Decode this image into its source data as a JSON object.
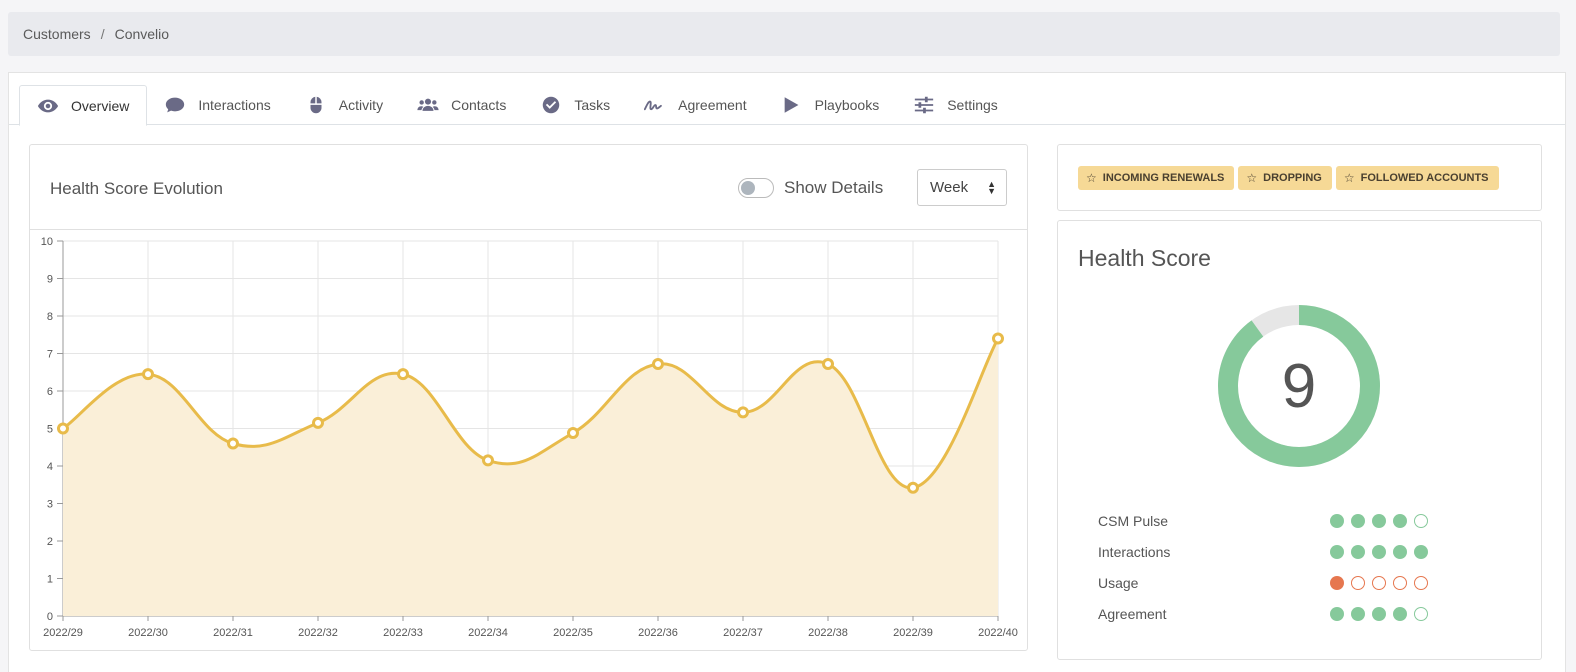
{
  "breadcrumb": {
    "items": [
      "Customers",
      "Convelio"
    ],
    "separator": "/"
  },
  "tabs": [
    {
      "label": "Overview",
      "icon": "eye-icon",
      "active": true
    },
    {
      "label": "Interactions",
      "icon": "chat-bubble-icon"
    },
    {
      "label": "Activity",
      "icon": "mouse-icon"
    },
    {
      "label": "Contacts",
      "icon": "users-icon"
    },
    {
      "label": "Tasks",
      "icon": "check-circle-icon"
    },
    {
      "label": "Agreement",
      "icon": "signature-icon"
    },
    {
      "label": "Playbooks",
      "icon": "play-icon"
    },
    {
      "label": "Settings",
      "icon": "sliders-icon"
    }
  ],
  "health_chart": {
    "title": "Health Score Evolution",
    "toggle_label": "Show Details",
    "toggle_on": false,
    "period_select": "Week"
  },
  "chart_data": {
    "type": "line",
    "categories": [
      "2022/29",
      "2022/30",
      "2022/31",
      "2022/32",
      "2022/33",
      "2022/34",
      "2022/35",
      "2022/36",
      "2022/37",
      "2022/38",
      "2022/39",
      "2022/40"
    ],
    "series": [
      {
        "values": [
          5.0,
          6.45,
          4.6,
          5.15,
          6.45,
          4.15,
          4.88,
          6.72,
          5.43,
          6.72,
          3.42,
          7.4
        ]
      }
    ],
    "ylim": [
      0,
      10
    ],
    "yticks": [
      0,
      1,
      2,
      3,
      4,
      5,
      6,
      7,
      8,
      9,
      10
    ],
    "grid": true,
    "fill": true,
    "line_color": "#e8bb4a",
    "fill_color": "#faefd8"
  },
  "tags": [
    {
      "label": "INCOMING RENEWALS",
      "icon": "star-icon"
    },
    {
      "label": "DROPPING",
      "icon": "star-icon"
    },
    {
      "label": "FOLLOWED ACCOUNTS",
      "icon": "star-icon"
    }
  ],
  "health_score": {
    "title": "Health Score",
    "value": "9",
    "fraction": 0.9,
    "color": "#86c99b",
    "track_color": "#e6e6e6",
    "metrics": [
      {
        "label": "CSM Pulse",
        "score": 4,
        "max": 5,
        "color": "green"
      },
      {
        "label": "Interactions",
        "score": 5,
        "max": 5,
        "color": "green"
      },
      {
        "label": "Usage",
        "score": 1,
        "max": 5,
        "color": "orange"
      },
      {
        "label": "Agreement",
        "score": 4,
        "max": 5,
        "color": "green"
      }
    ]
  }
}
